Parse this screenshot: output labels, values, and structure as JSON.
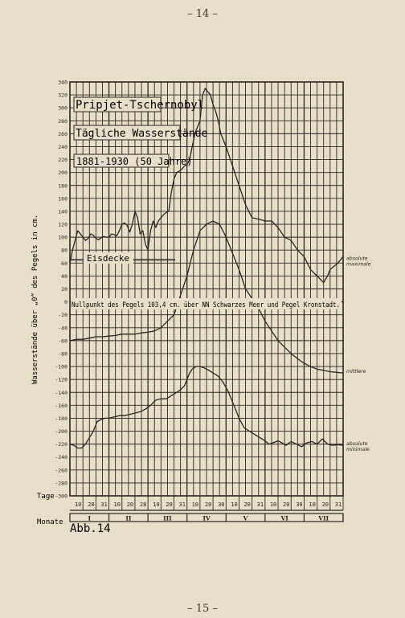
{
  "page": {
    "number_top": "– 14 –",
    "number_bottom": "– 15 –"
  },
  "figure_label": "Abb.14",
  "chart_data": {
    "type": "line",
    "title": "Pripjet-Tschernobyl",
    "subtitle": "Tägliche Wasserstände",
    "period": "1881-1930 (50 Jahre)",
    "ylabel": "Wasserstände über „0“ des Pegels in cm.",
    "xlabel_days": "Tage",
    "xlabel_months": "Monate",
    "ylim": [
      -300,
      340
    ],
    "yticks": [
      -300,
      -280,
      -260,
      -240,
      -220,
      -200,
      -180,
      -160,
      -140,
      -120,
      -100,
      -80,
      -60,
      -40,
      -20,
      0,
      20,
      40,
      60,
      80,
      100,
      120,
      140,
      160,
      180,
      200,
      220,
      240,
      260,
      280,
      300,
      320,
      340
    ],
    "ytick_labels": [
      "-300",
      "-280",
      "-260",
      "-240",
      "-220",
      "-200",
      "-180",
      "-160",
      "-140",
      "-120",
      "-100",
      "-80",
      "-60",
      "-40",
      "-20",
      "0",
      "20",
      "40",
      "60",
      "80",
      "100",
      "120",
      "140",
      "160",
      "180",
      "200",
      "220",
      "240",
      "260",
      "280",
      "300",
      "320",
      "340"
    ],
    "xlim": [
      0,
      210
    ],
    "day_ticks": [
      {
        "x": 10,
        "label": "10"
      },
      {
        "x": 20,
        "label": "20"
      },
      {
        "x": 30,
        "label": "31"
      },
      {
        "x": 40,
        "label": "10"
      },
      {
        "x": 50,
        "label": "20"
      },
      {
        "x": 60,
        "label": "28"
      },
      {
        "x": 70,
        "label": "10"
      },
      {
        "x": 80,
        "label": "20"
      },
      {
        "x": 90,
        "label": "31"
      },
      {
        "x": 100,
        "label": "10"
      },
      {
        "x": 110,
        "label": "20"
      },
      {
        "x": 120,
        "label": "30"
      },
      {
        "x": 130,
        "label": "10"
      },
      {
        "x": 140,
        "label": "20"
      },
      {
        "x": 150,
        "label": "31"
      },
      {
        "x": 160,
        "label": "10"
      },
      {
        "x": 170,
        "label": "20"
      },
      {
        "x": 180,
        "label": "30"
      },
      {
        "x": 190,
        "label": "10"
      },
      {
        "x": 200,
        "label": "20"
      },
      {
        "x": 210,
        "label": "31"
      }
    ],
    "months": [
      {
        "x0": 0,
        "x1": 30,
        "label": "I"
      },
      {
        "x0": 30,
        "x1": 60,
        "label": "II"
      },
      {
        "x0": 60,
        "x1": 90,
        "label": "III"
      },
      {
        "x0": 90,
        "x1": 120,
        "label": "IV"
      },
      {
        "x0": 120,
        "x1": 150,
        "label": "V"
      },
      {
        "x0": 150,
        "x1": 180,
        "label": "VI"
      },
      {
        "x0": 180,
        "x1": 210,
        "label": "VII"
      }
    ],
    "grid": true,
    "annotations": {
      "eisdecke": "Eisdecke",
      "eisdecke_level": 65,
      "eisdecke_x": [
        0,
        81
      ],
      "nullpunkt": "Nullpunkt des Pegels 103,4 cm. über NN Schwarzes Meer und Pegel Kronstadt."
    },
    "series": [
      {
        "name": "absolute maximale",
        "label_y": 65,
        "x": [
          0,
          2,
          4,
          6,
          8,
          10,
          12,
          14,
          16,
          18,
          20,
          22,
          24,
          26,
          28,
          30,
          32,
          34,
          36,
          38,
          40,
          42,
          44,
          46,
          48,
          50,
          52,
          54,
          56,
          58,
          60,
          62,
          64,
          66,
          68,
          70,
          72,
          74,
          76,
          78,
          80,
          82,
          84,
          86,
          88,
          90,
          92,
          94,
          96,
          98,
          100,
          102,
          104,
          106,
          108,
          110,
          112,
          114,
          116,
          118,
          120,
          125,
          130,
          135,
          140,
          145,
          150,
          155,
          160,
          165,
          170,
          175,
          180,
          185,
          190,
          195,
          198,
          200,
          203,
          206,
          210
        ],
        "values": [
          60,
          80,
          95,
          110,
          105,
          100,
          95,
          98,
          105,
          103,
          98,
          96,
          99,
          101,
          100,
          100,
          105,
          104,
          102,
          110,
          120,
          122,
          118,
          108,
          120,
          140,
          130,
          105,
          110,
          90,
          80,
          110,
          125,
          115,
          125,
          130,
          135,
          138,
          140,
          170,
          190,
          200,
          202,
          205,
          210,
          212,
          220,
          240,
          260,
          270,
          280,
          320,
          330,
          325,
          320,
          305,
          295,
          280,
          260,
          250,
          240,
          210,
          180,
          150,
          130,
          128,
          125,
          125,
          115,
          100,
          95,
          80,
          70,
          50,
          40,
          30,
          40,
          50,
          55,
          60,
          70
        ]
      },
      {
        "name": "mittlere",
        "label_y": -110,
        "x": [
          0,
          5,
          10,
          15,
          20,
          25,
          30,
          35,
          40,
          45,
          50,
          55,
          60,
          65,
          70,
          75,
          80,
          85,
          90,
          95,
          100,
          105,
          110,
          115,
          120,
          125,
          130,
          135,
          140,
          145,
          150,
          155,
          160,
          165,
          170,
          175,
          180,
          185,
          190,
          195,
          200,
          205,
          210
        ],
        "values": [
          -60,
          -58,
          -58,
          -56,
          -54,
          -54,
          -53,
          -52,
          -50,
          -50,
          -50,
          -48,
          -47,
          -45,
          -40,
          -30,
          -20,
          10,
          40,
          80,
          110,
          120,
          125,
          120,
          100,
          75,
          50,
          20,
          5,
          -10,
          -30,
          -45,
          -60,
          -70,
          -80,
          -88,
          -95,
          -100,
          -104,
          -106,
          -108,
          -109,
          -110
        ]
      },
      {
        "name": "absolute minimale",
        "label_y": -222,
        "x": [
          0,
          3,
          6,
          9,
          12,
          15,
          18,
          21,
          24,
          27,
          30,
          34,
          38,
          42,
          46,
          50,
          54,
          58,
          62,
          66,
          70,
          74,
          78,
          82,
          85,
          88,
          90,
          92,
          94,
          97,
          100,
          103,
          106,
          110,
          114,
          118,
          122,
          126,
          130,
          134,
          138,
          142,
          146,
          150,
          153,
          156,
          160,
          163,
          166,
          170,
          174,
          178,
          182,
          186,
          190,
          194,
          198,
          202,
          206,
          210
        ],
        "values": [
          -220,
          -222,
          -226,
          -226,
          -220,
          -210,
          -200,
          -185,
          -182,
          -180,
          -180,
          -178,
          -176,
          -176,
          -174,
          -172,
          -170,
          -166,
          -160,
          -152,
          -150,
          -150,
          -145,
          -140,
          -136,
          -130,
          -120,
          -110,
          -104,
          -100,
          -100,
          -102,
          -105,
          -110,
          -115,
          -125,
          -140,
          -160,
          -180,
          -195,
          -200,
          -205,
          -210,
          -215,
          -220,
          -218,
          -215,
          -218,
          -222,
          -216,
          -220,
          -224,
          -218,
          -216,
          -220,
          -212,
          -220,
          -222,
          -221,
          -222
        ]
      }
    ]
  }
}
